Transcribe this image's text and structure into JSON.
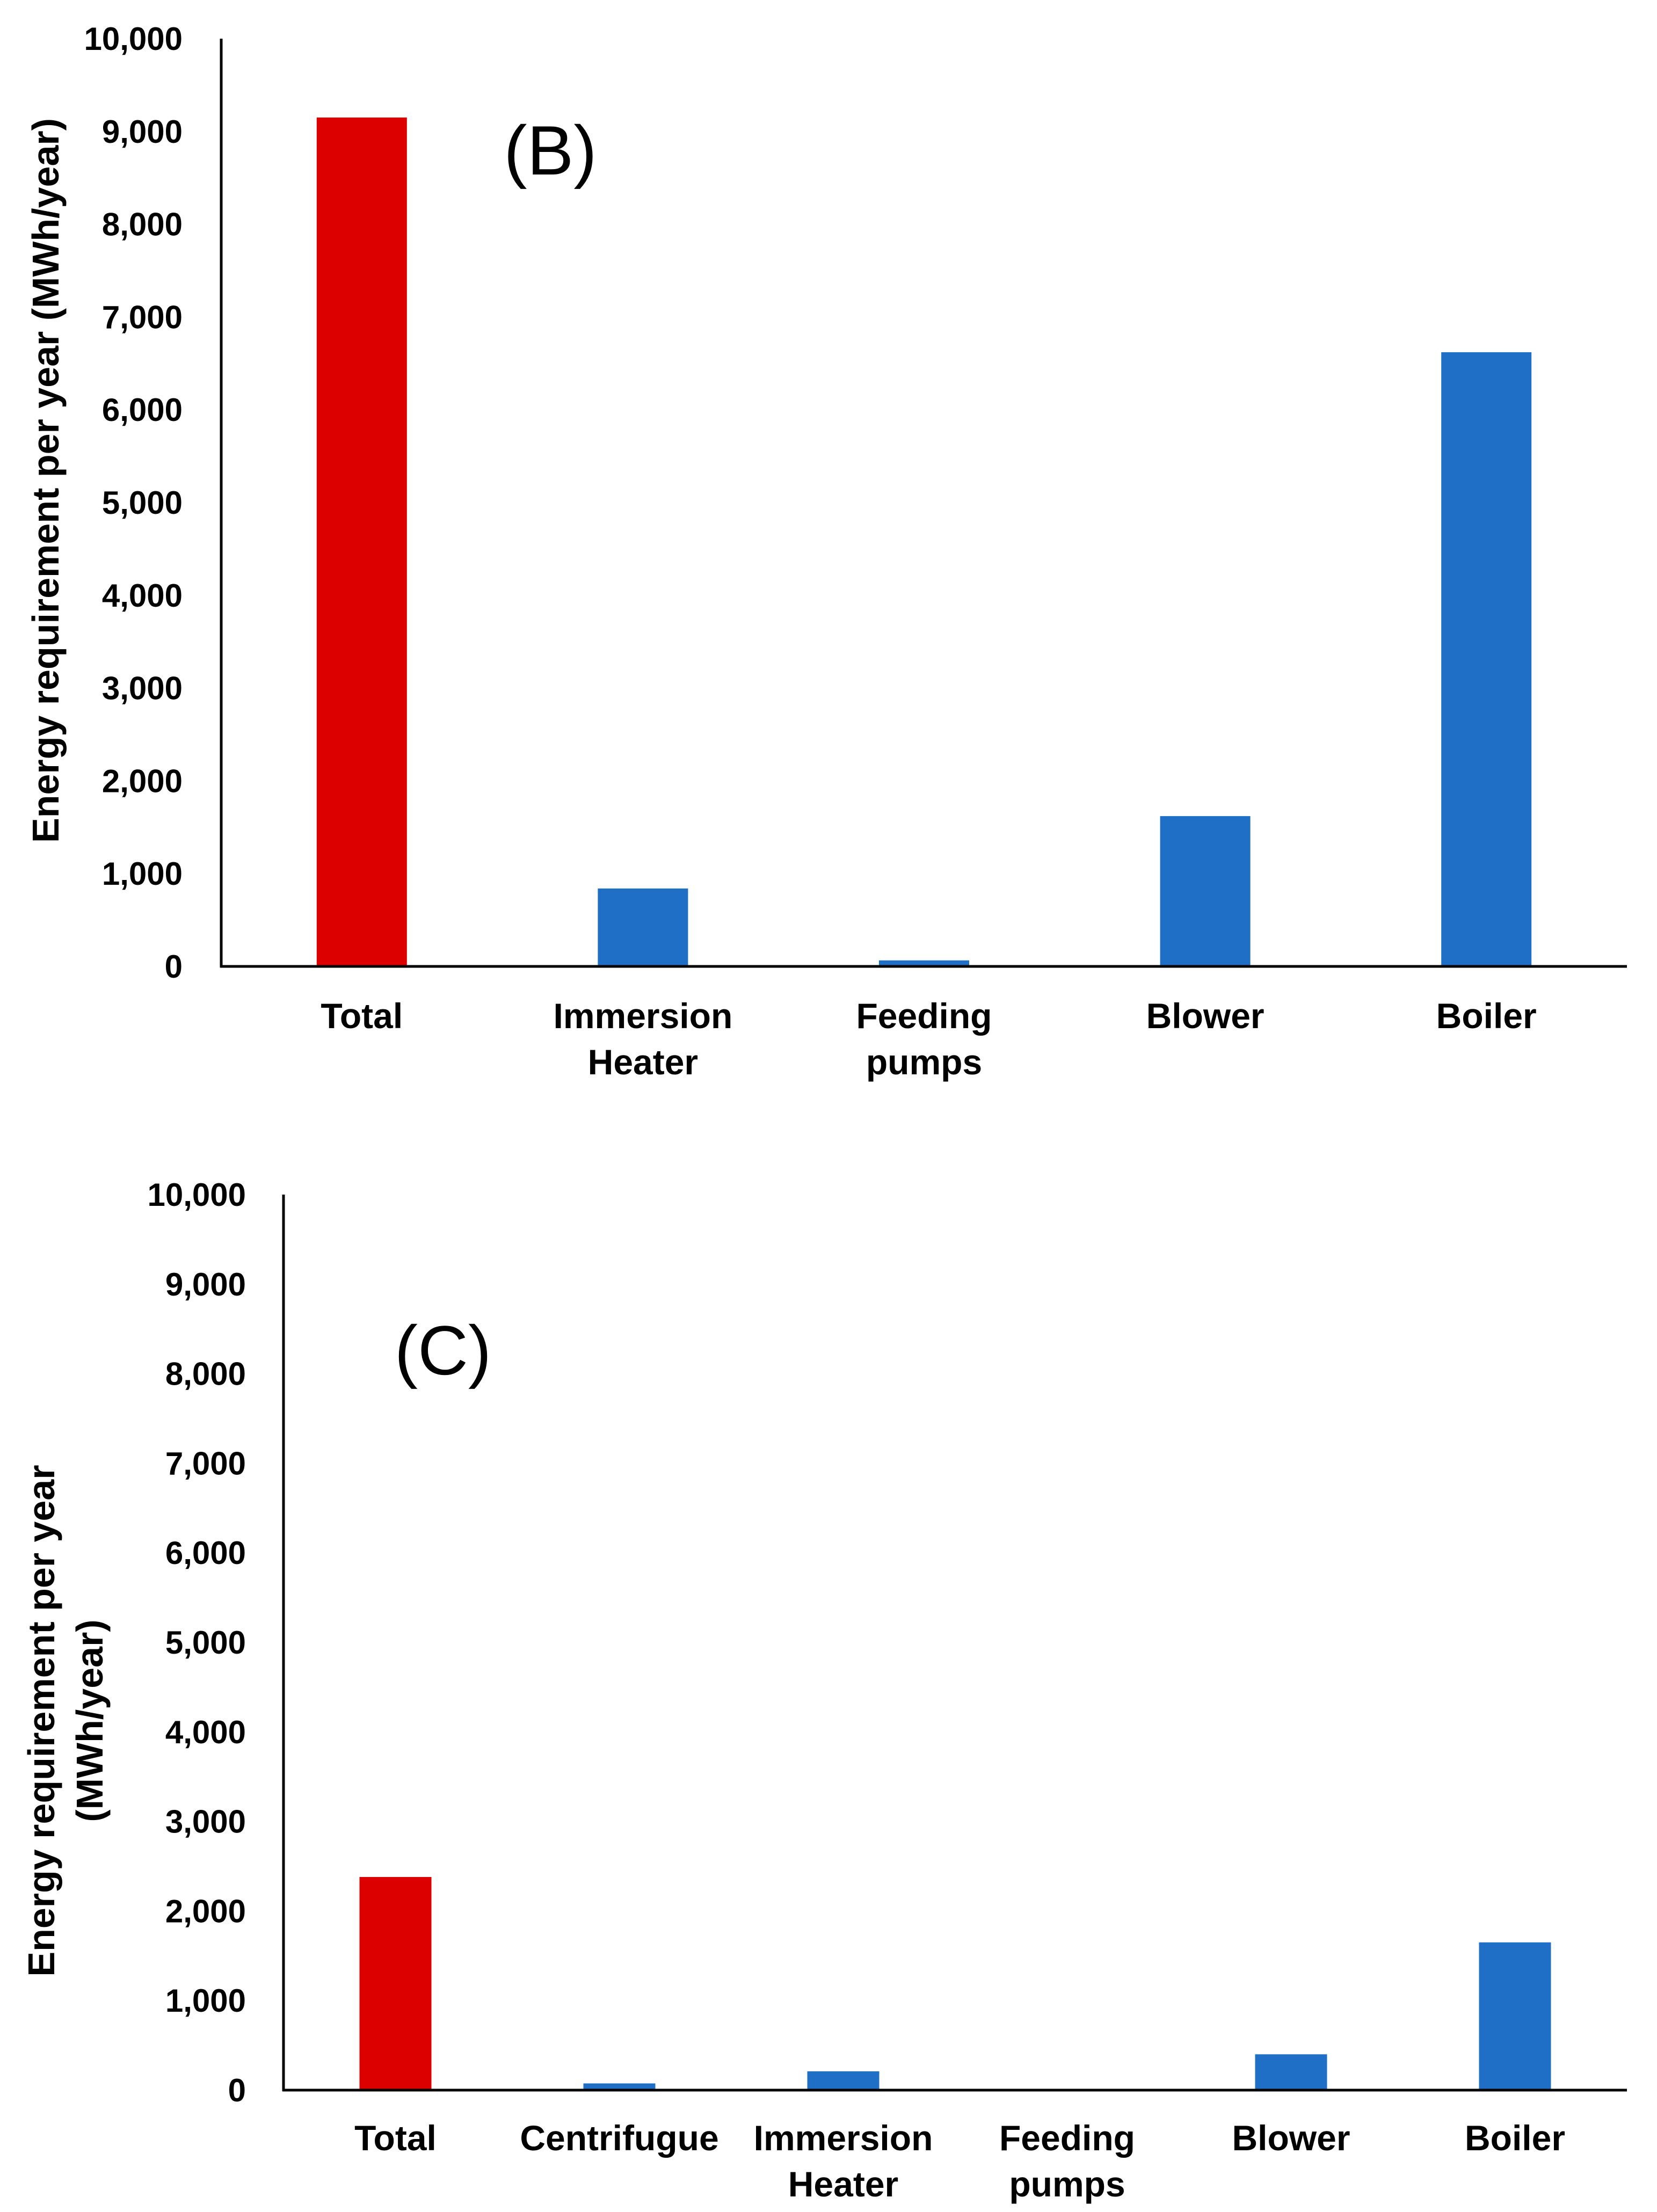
{
  "chart_data": [
    {
      "type": "bar",
      "panel_label": "(B)",
      "categories": [
        [
          "Total"
        ],
        [
          "Immersion",
          "Heater"
        ],
        [
          "Feeding",
          "pumps"
        ],
        [
          "Blower"
        ],
        [
          "Boiler"
        ]
      ],
      "values": [
        9150,
        840,
        65,
        1620,
        6620
      ],
      "bar_colors": [
        "#dd0000",
        "#1f6fc6",
        "#1f6fc6",
        "#1f6fc6",
        "#1f6fc6"
      ],
      "ylabel": [
        "Energy requirement per year (MWh/year)"
      ],
      "ylim": [
        0,
        10000
      ],
      "yticks": [
        "0",
        "1,000",
        "2,000",
        "3,000",
        "4,000",
        "5,000",
        "6,000",
        "7,000",
        "8,000",
        "9,000",
        "10,000"
      ]
    },
    {
      "type": "bar",
      "panel_label": "(C)",
      "categories": [
        [
          "Total"
        ],
        [
          "Centrifugue"
        ],
        [
          "Immersion",
          "Heater"
        ],
        [
          "Feeding",
          "pumps"
        ],
        [
          "Blower"
        ],
        [
          "Boiler"
        ]
      ],
      "values": [
        2380,
        75,
        210,
        10,
        400,
        1650
      ],
      "bar_colors": [
        "#dd0000",
        "#1f6fc6",
        "#1f6fc6",
        "#1f6fc6",
        "#1f6fc6",
        "#1f6fc6"
      ],
      "ylabel": [
        "Energy requirement per year",
        "(MWh/year)"
      ],
      "ylim": [
        0,
        10000
      ],
      "yticks": [
        "0",
        "1,000",
        "2,000",
        "3,000",
        "4,000",
        "5,000",
        "6,000",
        "7,000",
        "8,000",
        "9,000",
        "10,000"
      ]
    }
  ]
}
